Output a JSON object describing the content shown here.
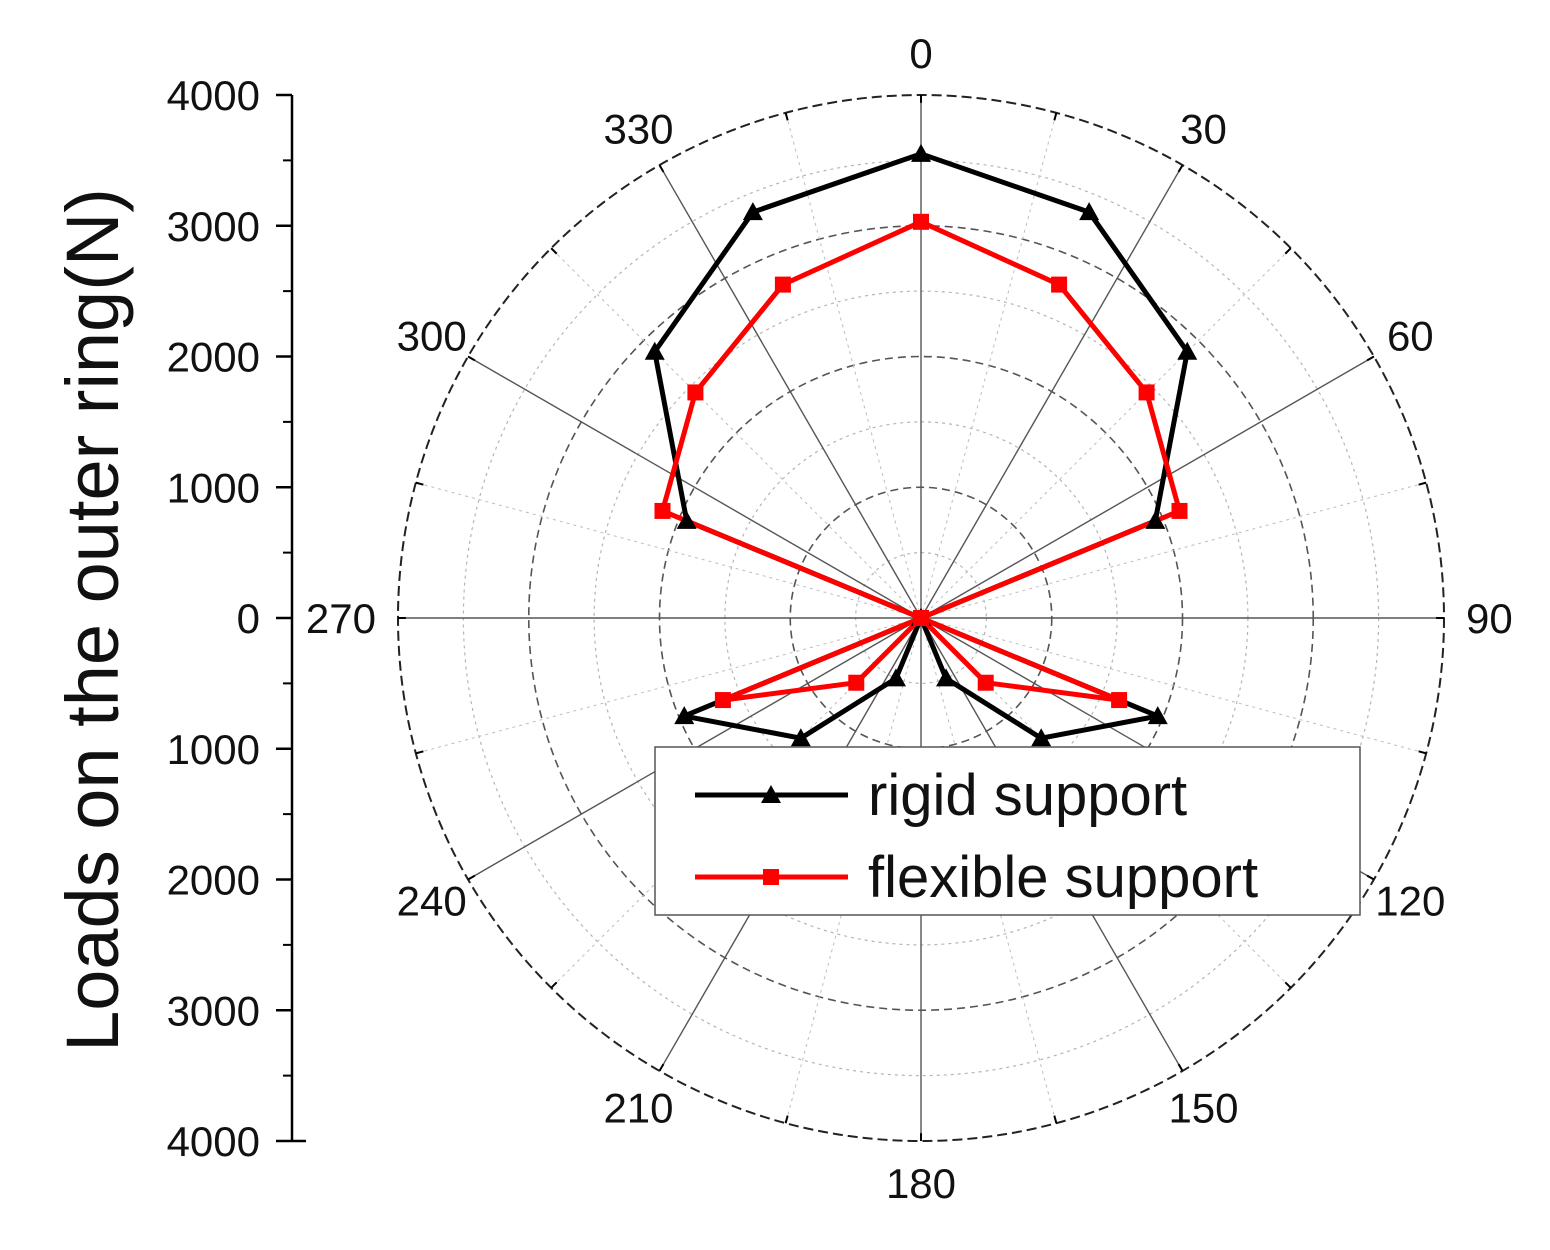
{
  "chart_data": {
    "type": "polar-line",
    "title": "",
    "ylabel": "Loads on the outer ring(N)",
    "radial_range": [
      0,
      4000
    ],
    "radial_ticks": [
      4000,
      3000,
      2000,
      1000,
      0,
      1000,
      2000,
      3000,
      4000
    ],
    "radial_grid_values": [
      500,
      1000,
      1500,
      2000,
      2500,
      3000,
      3500
    ],
    "angle_labels": [
      "0",
      "30",
      "60",
      "90",
      "120",
      "150",
      "180",
      "210",
      "240",
      "270",
      "300",
      "330"
    ],
    "angle_direction": "clockwise, 0 at top",
    "grid": true,
    "legend_position": "lower-center",
    "series": [
      {
        "name": "rigid support",
        "color": "#000000",
        "marker": "triangle",
        "points": [
          {
            "angle": 0,
            "r": 3550
          },
          {
            "angle": 22.5,
            "r": 3360
          },
          {
            "angle": 45,
            "r": 2880
          },
          {
            "angle": 67.5,
            "r": 1940
          },
          {
            "angle": 90,
            "r": 0
          },
          {
            "angle": 112.5,
            "r": 1960
          },
          {
            "angle": 135,
            "r": 1300
          },
          {
            "angle": 157.5,
            "r": 500
          },
          {
            "angle": 180,
            "r": 0
          },
          {
            "angle": 202.5,
            "r": 500
          },
          {
            "angle": 225,
            "r": 1300
          },
          {
            "angle": 247.5,
            "r": 1960
          },
          {
            "angle": 270,
            "r": 0
          },
          {
            "angle": 292.5,
            "r": 1940
          },
          {
            "angle": 315,
            "r": 2880
          },
          {
            "angle": 337.5,
            "r": 3360
          },
          {
            "angle": 360,
            "r": 3550
          }
        ]
      },
      {
        "name": "flexible support",
        "color": "#ff0000",
        "marker": "square",
        "points": [
          {
            "angle": 0,
            "r": 3030
          },
          {
            "angle": 22.5,
            "r": 2760
          },
          {
            "angle": 45,
            "r": 2440
          },
          {
            "angle": 67.5,
            "r": 2140
          },
          {
            "angle": 90,
            "r": 0
          },
          {
            "angle": 112.5,
            "r": 1640
          },
          {
            "angle": 135,
            "r": 700
          },
          {
            "angle": 157.5,
            "r": 0
          },
          {
            "angle": 180,
            "r": 0
          },
          {
            "angle": 202.5,
            "r": 0
          },
          {
            "angle": 225,
            "r": 700
          },
          {
            "angle": 247.5,
            "r": 1640
          },
          {
            "angle": 270,
            "r": 0
          },
          {
            "angle": 292.5,
            "r": 2140
          },
          {
            "angle": 315,
            "r": 2440
          },
          {
            "angle": 337.5,
            "r": 2760
          },
          {
            "angle": 360,
            "r": 3030
          }
        ]
      }
    ]
  }
}
